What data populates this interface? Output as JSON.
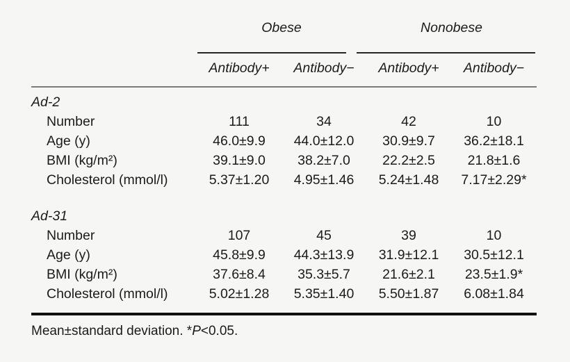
{
  "chart_data": {
    "type": "table",
    "column_groups": [
      {
        "label": "Obese"
      },
      {
        "label": "Nonobese"
      }
    ],
    "sub_columns": [
      "Antibody+",
      "Antibody−",
      "Antibody+",
      "Antibody−"
    ],
    "sections": [
      {
        "label": "Ad-2",
        "rows": [
          {
            "label": "Number",
            "values": [
              "111",
              "34",
              "42",
              "10"
            ]
          },
          {
            "label": "Age (y)",
            "values": [
              "46.0±9.9",
              "44.0±12.0",
              "30.9±9.7",
              "36.2±18.1"
            ]
          },
          {
            "label": "BMI (kg/m²)",
            "values": [
              "39.1±9.0",
              "38.2±7.0",
              "22.2±2.5",
              "21.8±1.6"
            ]
          },
          {
            "label": "Cholesterol (mmol/l)",
            "values": [
              "5.37±1.20",
              "4.95±1.46",
              "5.24±1.48",
              "7.17±2.29*"
            ]
          }
        ]
      },
      {
        "label": "Ad-31",
        "rows": [
          {
            "label": "Number",
            "values": [
              "107",
              "45",
              "39",
              "10"
            ]
          },
          {
            "label": "Age (y)",
            "values": [
              "45.8±9.9",
              "44.3±13.9",
              "31.9±12.1",
              "30.5±12.1"
            ]
          },
          {
            "label": "BMI (kg/m²)",
            "values": [
              "37.6±8.4",
              "35.3±5.7",
              "21.6±2.1",
              "23.5±1.9*"
            ]
          },
          {
            "label": "Cholesterol (mmol/l)",
            "values": [
              "5.02±1.28",
              "5.35±1.40",
              "5.50±1.87",
              "6.08±1.84"
            ]
          }
        ]
      }
    ],
    "footnote": {
      "prefix": "Mean±standard deviation. *",
      "p_symbol": "P",
      "suffix": "<0.05."
    }
  }
}
